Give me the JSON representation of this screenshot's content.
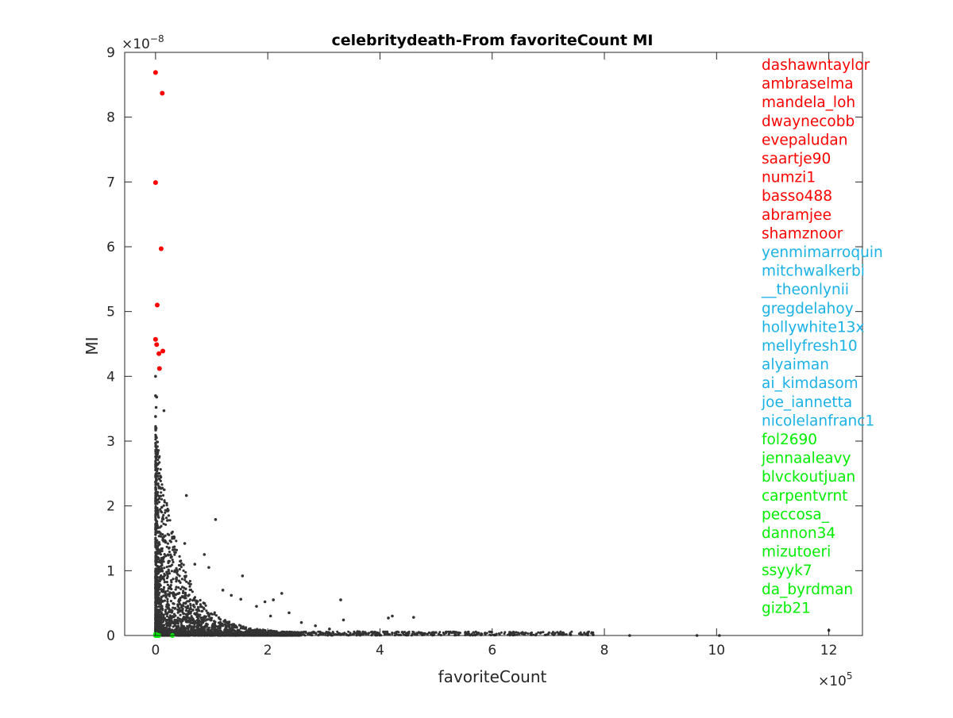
{
  "chart_data": {
    "type": "scatter",
    "title": "celebritydeath-From favoriteCount MI",
    "xlabel": "favoriteCount",
    "ylabel": "MI",
    "x_exponent_label": "×10",
    "x_exponent": "5",
    "y_exponent_label": "×10",
    "y_exponent": "−8",
    "xlim": [
      -0.55,
      12.6
    ],
    "ylim": [
      0,
      9
    ],
    "x_ticks": [
      0,
      2,
      4,
      6,
      8,
      10,
      12
    ],
    "x_tick_labels": [
      "0",
      "2",
      "4",
      "6",
      "8",
      "10",
      "12"
    ],
    "y_ticks": [
      0,
      1,
      2,
      3,
      4,
      5,
      6,
      7,
      8,
      9
    ],
    "y_tick_labels": [
      "0",
      "1",
      "2",
      "3",
      "4",
      "5",
      "6",
      "7",
      "8",
      "9"
    ],
    "grid": false,
    "colors": {
      "background": "#00000000",
      "frame": "#262626",
      "bulk": "#333333",
      "top_group": "#ff0000",
      "mid_group": "#1ab2e6",
      "bottom_group": "#00ee00"
    },
    "series": [
      {
        "group": "top_group",
        "points": [
          {
            "x": 0.0,
            "y": 8.69
          },
          {
            "x": 0.12,
            "y": 8.37
          },
          {
            "x": 0.0,
            "y": 6.99
          },
          {
            "x": 0.1,
            "y": 5.97
          },
          {
            "x": 0.03,
            "y": 5.1
          },
          {
            "x": 0.0,
            "y": 4.57
          },
          {
            "x": 0.02,
            "y": 4.49
          },
          {
            "x": 0.13,
            "y": 4.39
          },
          {
            "x": 0.06,
            "y": 4.35
          },
          {
            "x": 0.07,
            "y": 4.12
          }
        ]
      },
      {
        "group": "bottom_group",
        "points": [
          {
            "x": 0.0,
            "y": 0.0
          },
          {
            "x": 0.02,
            "y": 0.0
          },
          {
            "x": 0.04,
            "y": 0.0
          },
          {
            "x": 0.01,
            "y": 0.0
          },
          {
            "x": 0.06,
            "y": 0.0
          },
          {
            "x": 0.3,
            "y": 0.0
          },
          {
            "x": 0.03,
            "y": 0.0
          },
          {
            "x": 0.05,
            "y": 0.0
          },
          {
            "x": 0.0,
            "y": 0.02
          },
          {
            "x": 0.02,
            "y": 0.01
          }
        ]
      },
      {
        "group": "bulk",
        "points": [
          {
            "x": 0.0,
            "y": 3.7
          },
          {
            "x": 0.02,
            "y": 3.68
          },
          {
            "x": 0.01,
            "y": 3.52
          },
          {
            "x": 0.15,
            "y": 3.47
          },
          {
            "x": 0.0,
            "y": 3.38
          },
          {
            "x": 0.01,
            "y": 3.2
          },
          {
            "x": 0.0,
            "y": 4.0
          },
          {
            "x": 0.55,
            "y": 2.16
          },
          {
            "x": 1.07,
            "y": 1.79
          },
          {
            "x": 0.87,
            "y": 1.25
          },
          {
            "x": 0.52,
            "y": 1.42
          },
          {
            "x": 1.55,
            "y": 0.92
          },
          {
            "x": 1.52,
            "y": 0.56
          },
          {
            "x": 2.25,
            "y": 0.65
          },
          {
            "x": 2.1,
            "y": 0.55
          },
          {
            "x": 2.38,
            "y": 0.35
          },
          {
            "x": 3.3,
            "y": 0.55
          },
          {
            "x": 3.35,
            "y": 0.24
          },
          {
            "x": 4.22,
            "y": 0.3
          },
          {
            "x": 4.15,
            "y": 0.27
          },
          {
            "x": 4.6,
            "y": 0.28
          },
          {
            "x": 4.8,
            "y": 0.03
          },
          {
            "x": 5.05,
            "y": 0.02
          },
          {
            "x": 5.4,
            "y": 0.01
          },
          {
            "x": 5.8,
            "y": 0.01
          },
          {
            "x": 6.05,
            "y": 0.01
          },
          {
            "x": 6.4,
            "y": 0.01
          },
          {
            "x": 6.7,
            "y": 0.01
          },
          {
            "x": 7.1,
            "y": 0.01
          },
          {
            "x": 7.4,
            "y": 0.01
          },
          {
            "x": 7.8,
            "y": 0.01
          },
          {
            "x": 8.45,
            "y": 0.0
          },
          {
            "x": 9.65,
            "y": 0.0
          },
          {
            "x": 10.05,
            "y": 0.0
          },
          {
            "x": 12.0,
            "y": 0.08
          },
          {
            "x": 0.7,
            "y": 1.1
          },
          {
            "x": 0.95,
            "y": 1.05
          },
          {
            "x": 1.2,
            "y": 0.7
          },
          {
            "x": 1.35,
            "y": 0.62
          },
          {
            "x": 1.8,
            "y": 0.45
          },
          {
            "x": 1.95,
            "y": 0.52
          },
          {
            "x": 2.05,
            "y": 0.3
          },
          {
            "x": 2.6,
            "y": 0.2
          },
          {
            "x": 2.85,
            "y": 0.15
          },
          {
            "x": 3.1,
            "y": 0.1
          },
          {
            "x": 3.6,
            "y": 0.06
          },
          {
            "x": 3.95,
            "y": 0.04
          },
          {
            "x": 4.4,
            "y": 0.05
          }
        ]
      }
    ],
    "name_labels": {
      "top_group": [
        "dashawntaylor",
        "ambraselma",
        "mandela_loh",
        "dwaynecobb",
        "evepaludan",
        "saartje90",
        "numzi1",
        "basso488",
        "abramjee",
        "shamznoor"
      ],
      "mid_group": [
        "yenmimarroquin",
        "mitchwalkerbi",
        "__theonlynii",
        "gregdelahoy",
        "hollywhite13x",
        "mellyfresh10",
        "alyaiman",
        "ai_kimdasom",
        "joe_iannetta",
        "nicolelanfranc1"
      ],
      "bottom_group": [
        "fol2690",
        "jennaaleavy",
        "blvckoutjuan",
        "carpentvrnt",
        "peccosa_",
        "dannon34",
        "mizutoeri",
        "ssyyk7",
        "da_byrdman",
        "gizb21"
      ]
    }
  }
}
